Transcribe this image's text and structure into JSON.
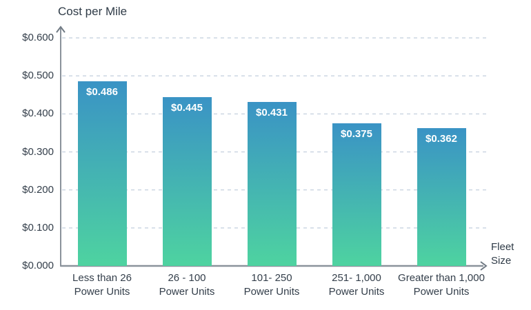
{
  "chart_data": {
    "type": "bar",
    "title": "Cost per Mile",
    "xlabel": "Fleet\nSize",
    "ylabel": "Cost per Mile",
    "categories": [
      "Less than 26\nPower Units",
      "26 - 100\nPower Units",
      "101- 250\nPower Units",
      "251- 1,000\nPower Units",
      "Greater than 1,000\nPower Units"
    ],
    "values": [
      0.486,
      0.445,
      0.431,
      0.375,
      0.362
    ],
    "value_labels": [
      "$0.486",
      "$0.445",
      "$0.431",
      "$0.375",
      "$0.362"
    ],
    "y_ticks": [
      0,
      0.1,
      0.2,
      0.3,
      0.4,
      0.5,
      0.6
    ],
    "y_tick_labels": [
      "$0.000",
      "$0.100",
      "$0.200",
      "$0.300",
      "$0.400",
      "$0.500",
      "$0.600"
    ],
    "ylim": [
      0,
      0.6
    ],
    "grid": "horizontal-dashed",
    "legend": "none"
  },
  "colors": {
    "bar_gradient_top": "#3a93c5",
    "bar_gradient_bottom": "#4ed3a0",
    "gridline": "#ccd6e2",
    "axis": "#8a929b",
    "text": "#333e4a",
    "value_label_text": "#ffffff"
  }
}
